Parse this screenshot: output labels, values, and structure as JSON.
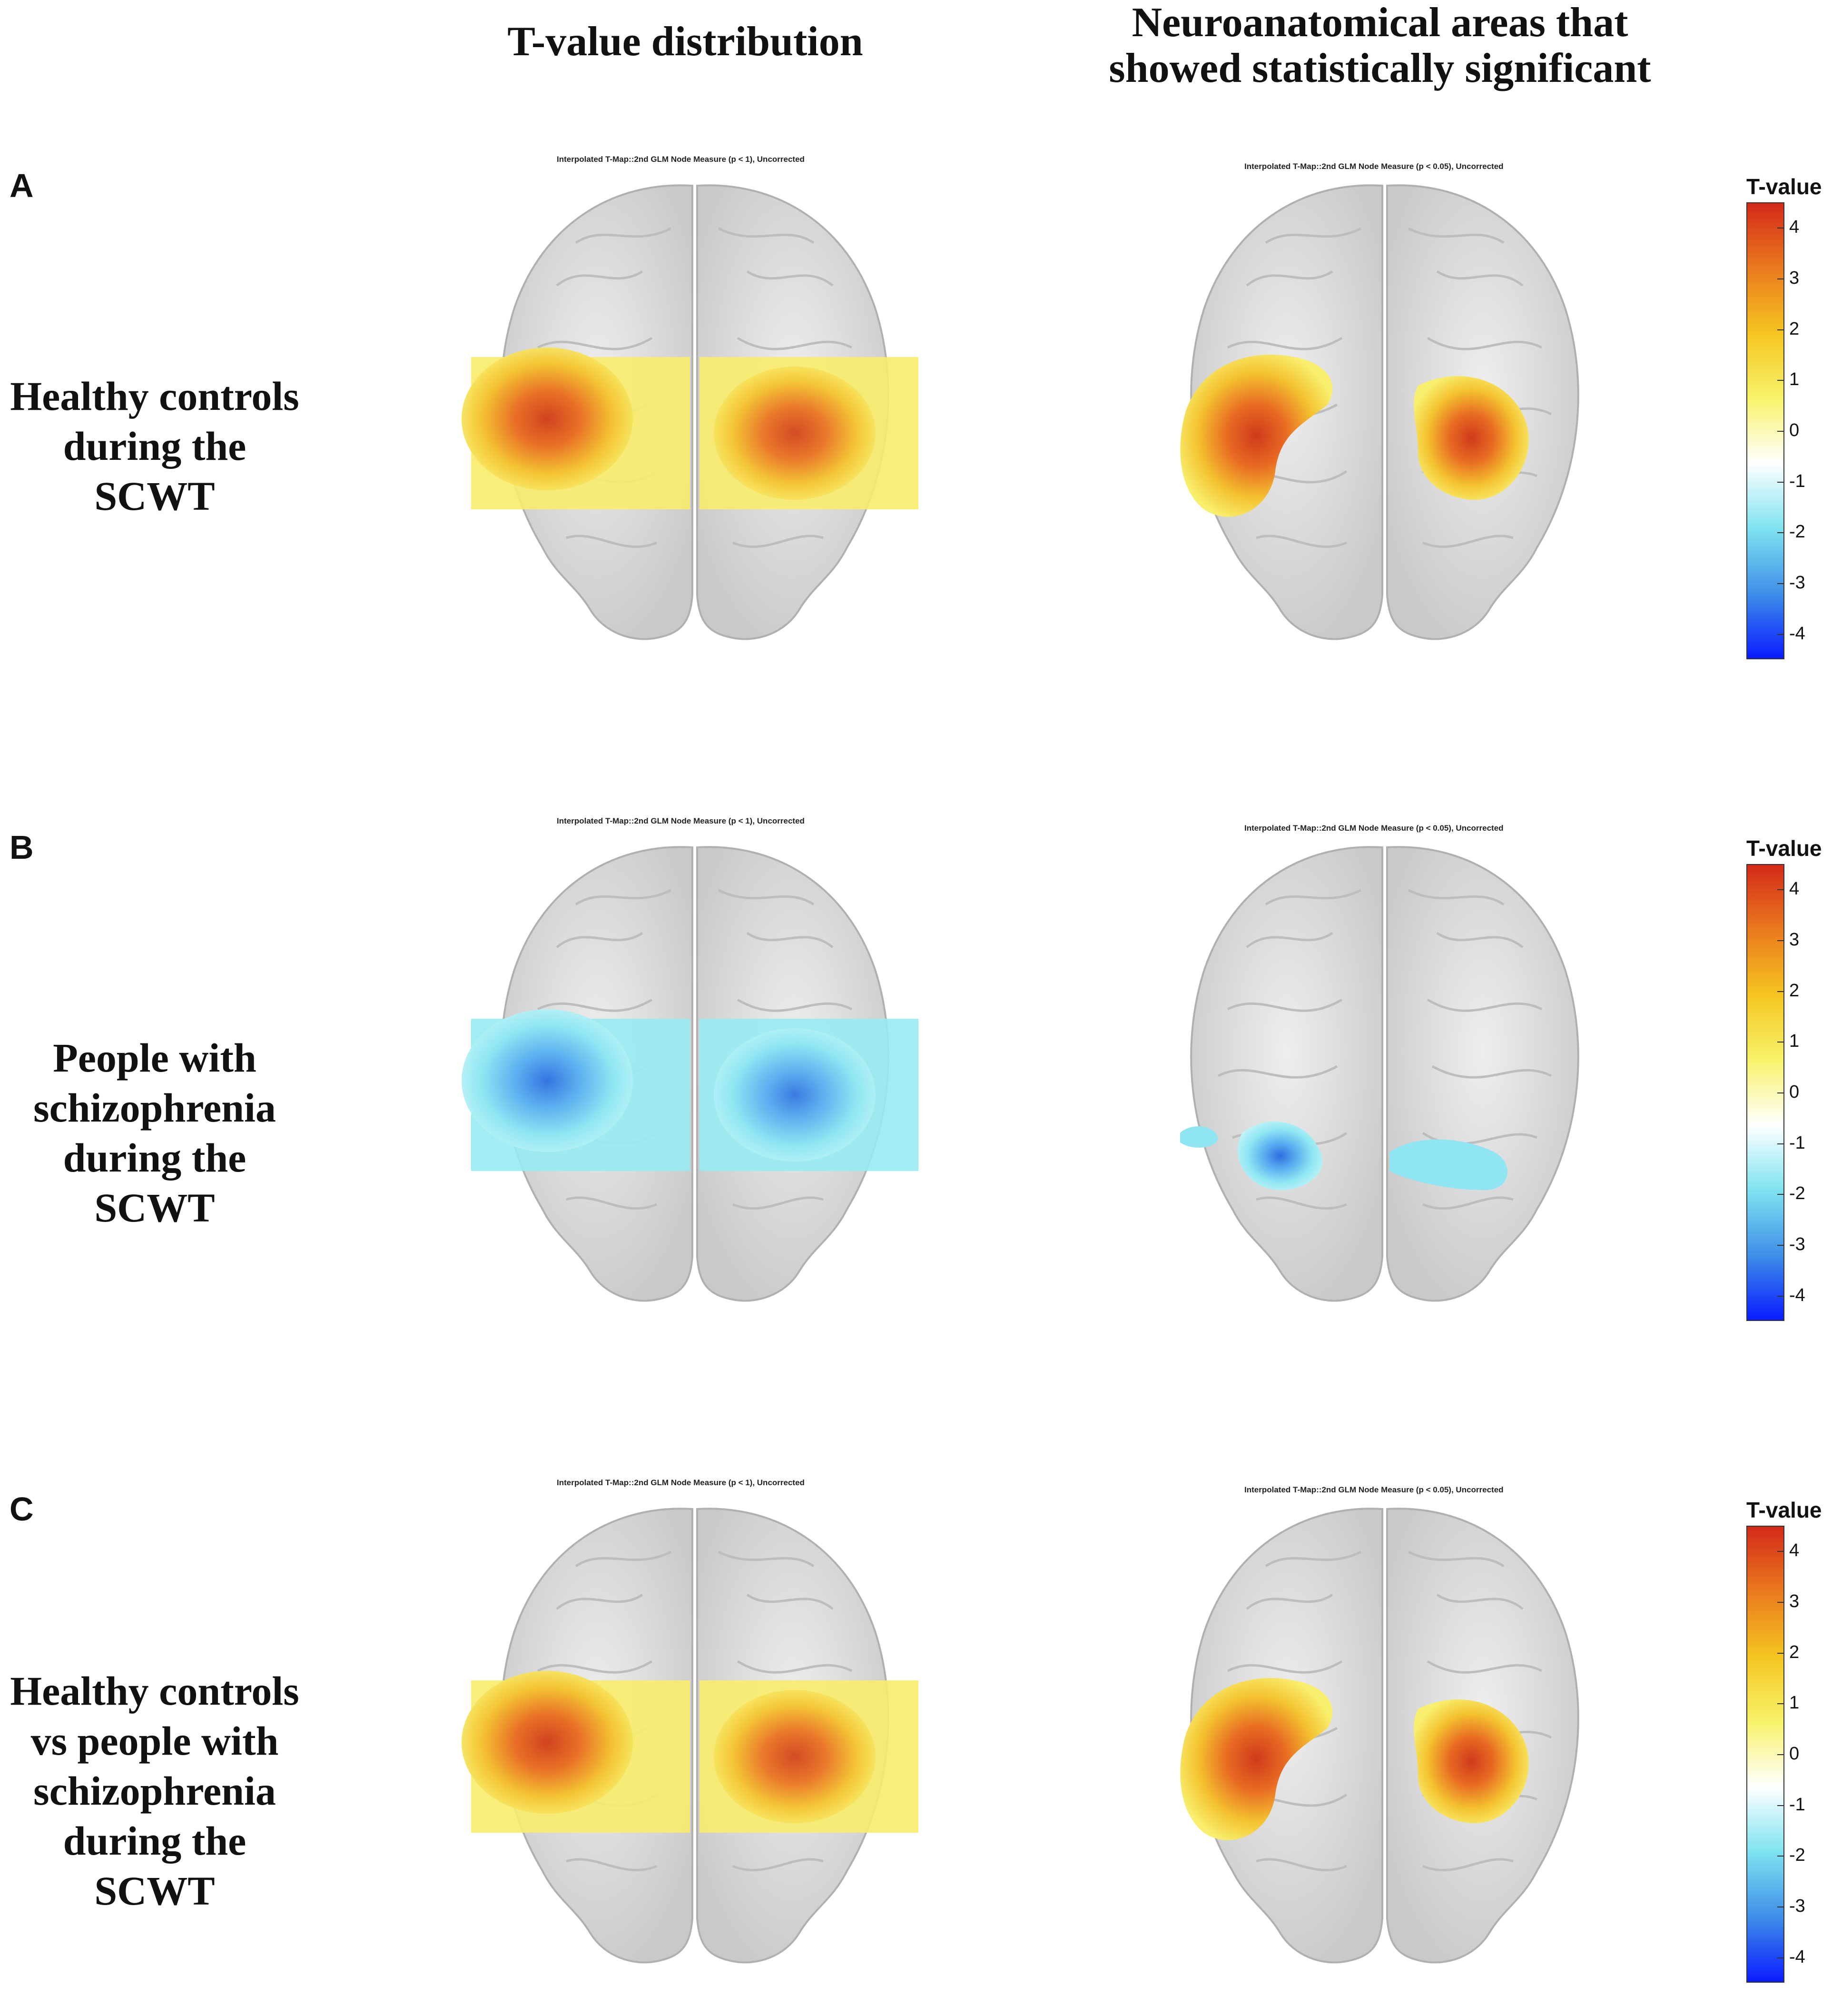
{
  "headers": {
    "left": "T-value distribution",
    "right_line1": "Neuroanatomical areas that",
    "right_line2": "showed statistically significant"
  },
  "panels": [
    {
      "letter": "A",
      "label_lines": [
        "Healthy controls",
        "during the",
        "SCWT"
      ],
      "map_title_left": "Interpolated T-Map::2nd GLM Node Measure (p < 1), Uncorrected",
      "map_title_right": "Interpolated T-Map::2nd GLM Node Measure (p < 0.05), Uncorrected",
      "effect": "positive"
    },
    {
      "letter": "B",
      "label_lines": [
        "People with",
        "schizophrenia",
        "during the",
        "SCWT"
      ],
      "map_title_left": "Interpolated T-Map::2nd GLM Node Measure (p < 1), Uncorrected",
      "map_title_right": "Interpolated T-Map::2nd GLM Node Measure (p < 0.05), Uncorrected",
      "effect": "negative"
    },
    {
      "letter": "C",
      "label_lines": [
        "Healthy controls",
        "vs people with",
        "schizophrenia",
        "during the",
        "SCWT"
      ],
      "map_title_left": "Interpolated T-Map::2nd GLM Node Measure (p < 1), Uncorrected",
      "map_title_right": "Interpolated T-Map::2nd GLM Node Measure (p < 0.05), Uncorrected",
      "effect": "positive"
    }
  ],
  "colorbar": {
    "title": "T-value",
    "ticks": [
      "4",
      "3",
      "2",
      "1",
      "0",
      "-1",
      "-2",
      "-3",
      "-4"
    ],
    "range": [
      -4.5,
      4.5
    ],
    "colors": [
      "#0a1cff",
      "#3f8fe8",
      "#7fe3f0",
      "#ffffff",
      "#f7f36a",
      "#f5c520",
      "#ea7a1e",
      "#d42a1a"
    ]
  }
}
